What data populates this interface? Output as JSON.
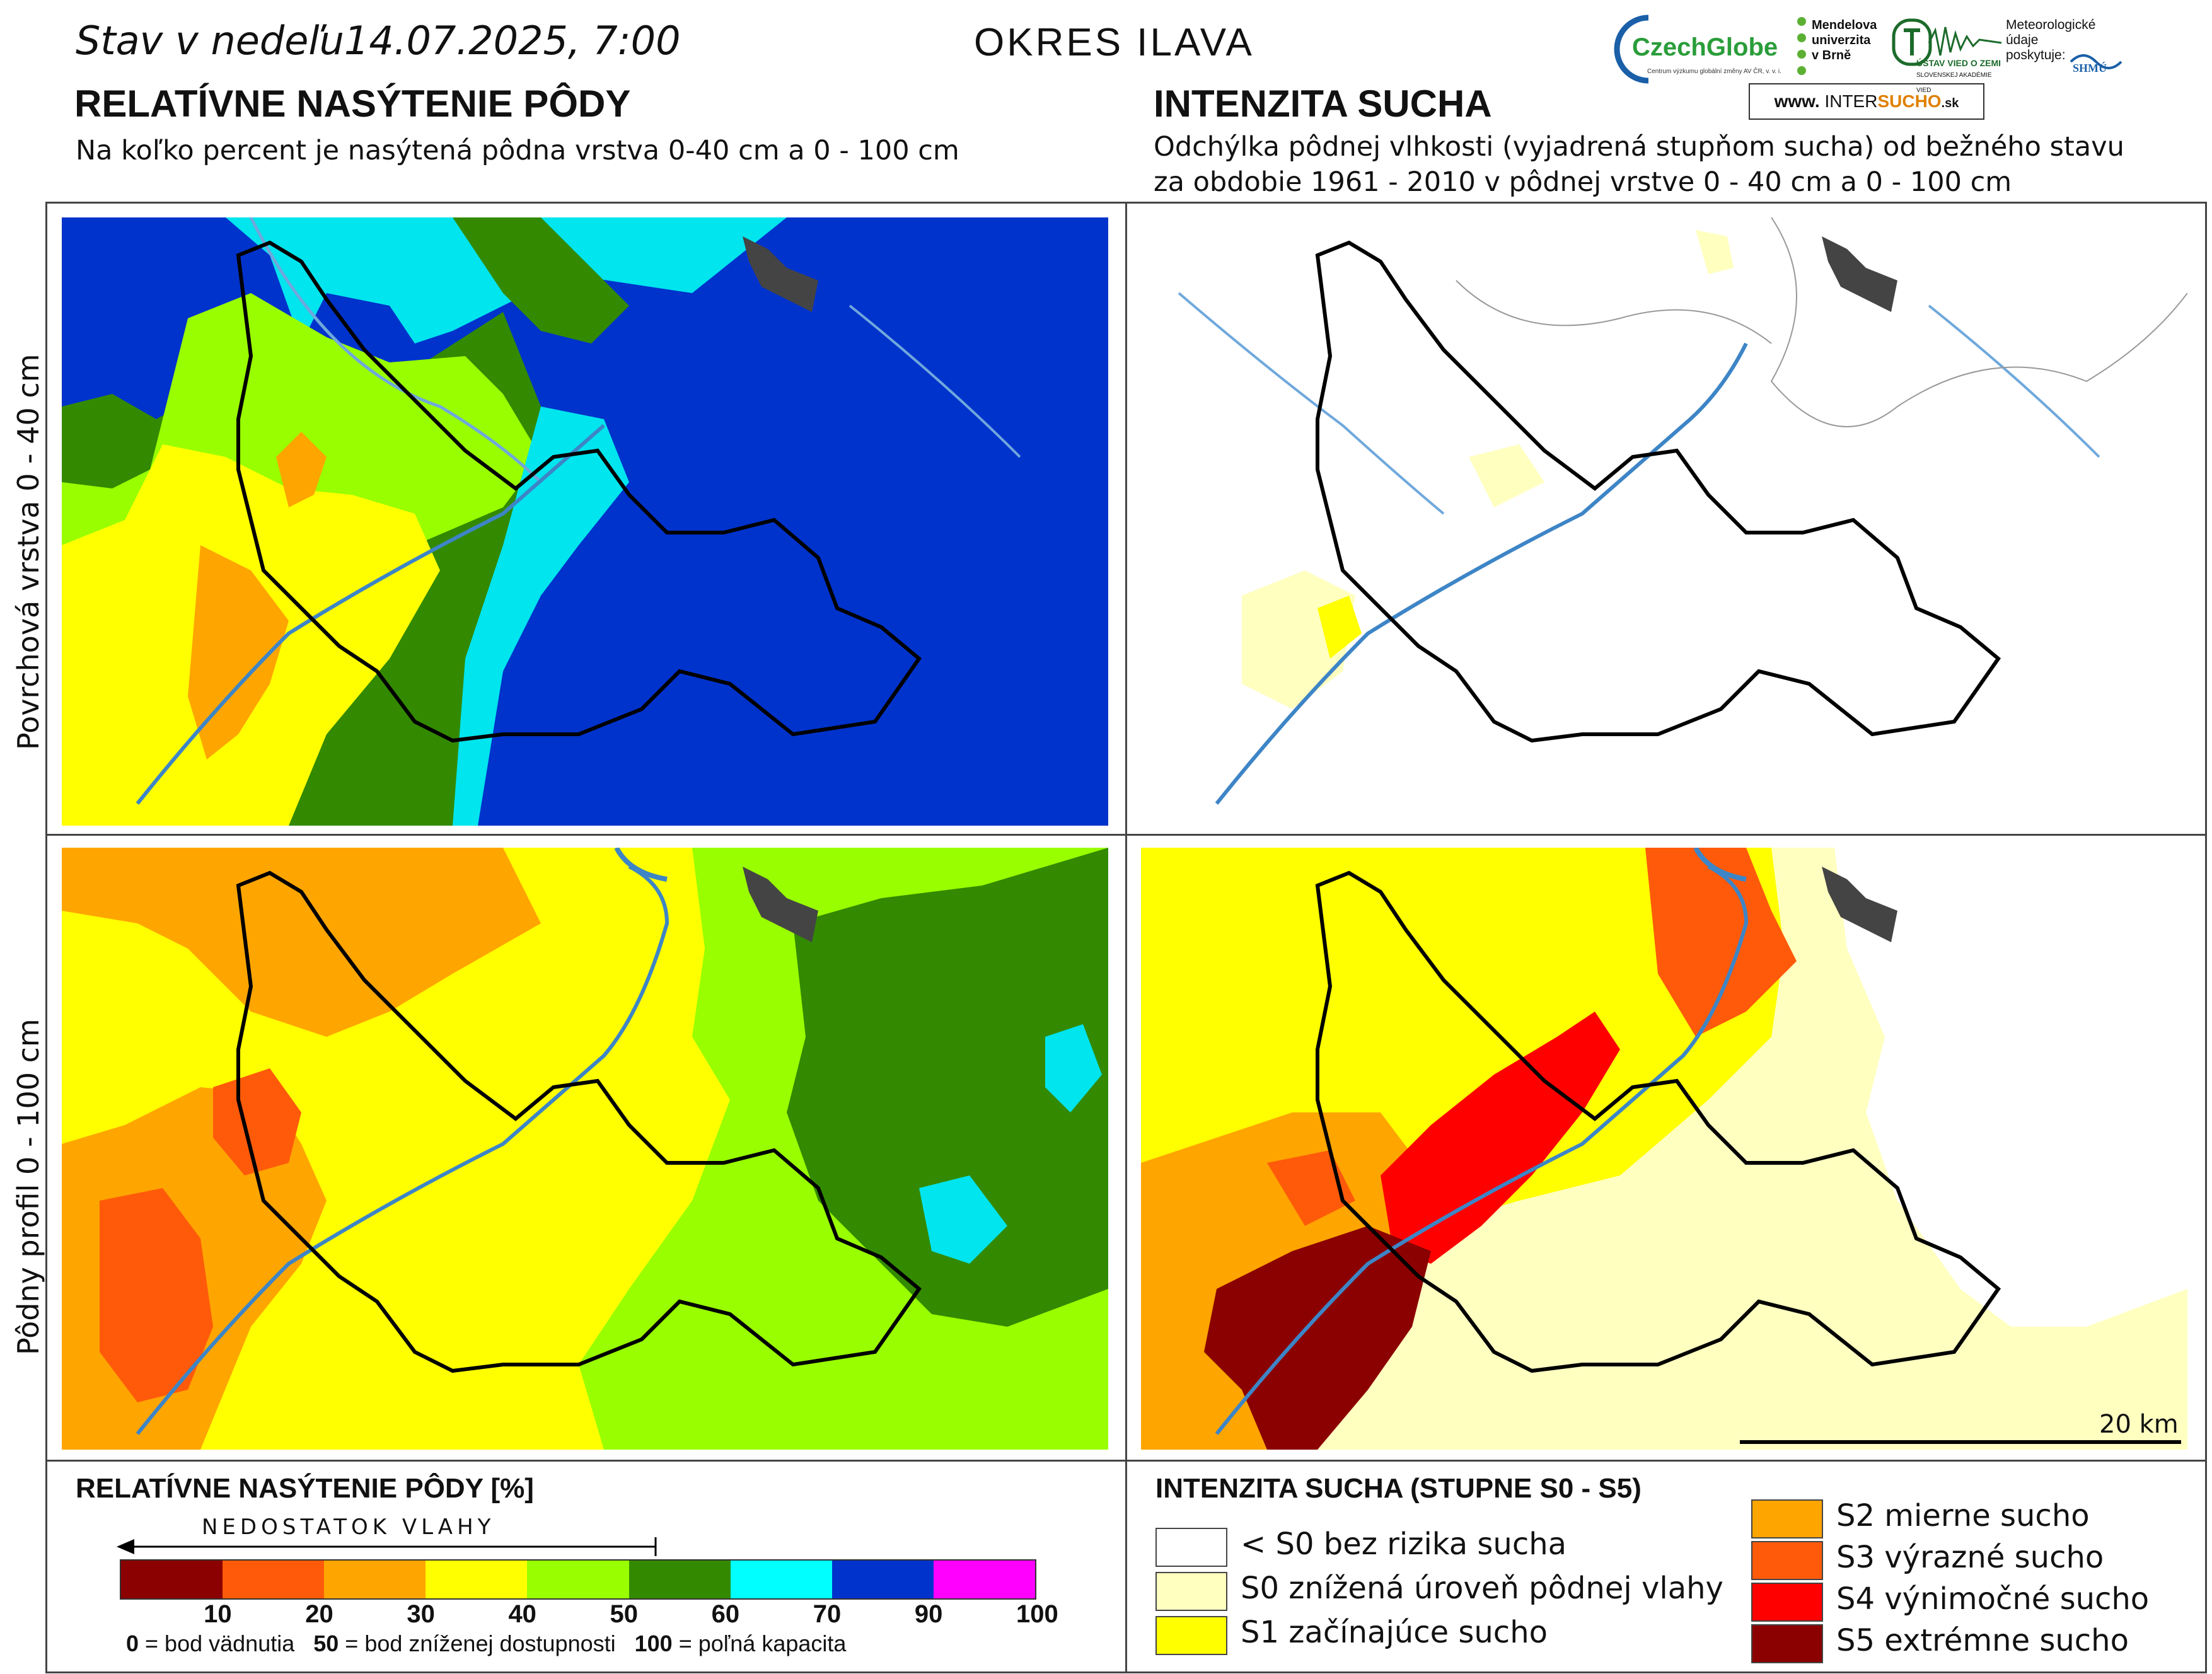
{
  "header": {
    "date_text": "Stav v nedeľu14.07.2025, 7:00",
    "district": "OKRES ILAVA",
    "left_title": "RELATÍVNE NASÝTENIE PÔDY",
    "left_subtitle": "Na koľko percent je nasýtená pôdna vrstva 0-40 cm a 0 - 100 cm",
    "right_title": "INTENZITA SUCHA",
    "right_subtitle_1": "Odchýlka pôdnej vlhkosti (vyjadrená stupňom sucha) od bežného stavu",
    "right_subtitle_2": "za obdobie 1961 - 2010 v pôdnej vrstve 0 - 40 cm a 0 - 100 cm"
  },
  "logos": {
    "czechglobe": "CzechGlobe",
    "czechglobe_sub": "Centrum výzkumu globální změny AV ČR, v. v. i.",
    "mendel": "Mendelova univerzita v Brně",
    "uvz": "ÚSTAV VIED O ZEMI",
    "uvz_sub": "SLOVENSKEJ AKADÉMIE VIED",
    "meteo": "Meteorologické údaje poskytuje:",
    "shmu": "SHMÚ",
    "web_prefix": "www.",
    "web_a": "INTER",
    "web_b": "SUCHO",
    "web_suffix": ".sk"
  },
  "row_labels": {
    "top": "Povrchová vrstva 0 - 40 cm",
    "bottom": "Pôdny profil 0 - 100 cm"
  },
  "scale_bar": "20 km",
  "saturation_legend": {
    "title": "RELATÍVNE NASÝTENIE PÔDY [%]",
    "arrow_label": "NEDOSTATOK VLAHY",
    "segments": [
      {
        "from": 0,
        "to": 10,
        "color": "#8b0000"
      },
      {
        "from": 10,
        "to": 20,
        "color": "#ff5a0a"
      },
      {
        "from": 20,
        "to": 30,
        "color": "#ffa500"
      },
      {
        "from": 30,
        "to": 40,
        "color": "#ffff00"
      },
      {
        "from": 40,
        "to": 50,
        "color": "#99ff00"
      },
      {
        "from": 50,
        "to": 60,
        "color": "#338a00"
      },
      {
        "from": 60,
        "to": 70,
        "color": "#00ffff"
      },
      {
        "from": 70,
        "to": 90,
        "color": "#0033cc"
      },
      {
        "from": 90,
        "to": 100,
        "color": "#ff00ff"
      }
    ],
    "ticks": [
      "10",
      "20",
      "30",
      "40",
      "50",
      "60",
      "70",
      "90",
      "100"
    ],
    "note_0": "0",
    "note_0_text": " = bod vädnutia",
    "note_50": "50",
    "note_50_text": " = bod zníženej dostupnosti",
    "note_100": "100",
    "note_100_text": " = poľná kapacita"
  },
  "drought_legend": {
    "title": "INTENZITA SUCHA (STUPNE S0 - S5)",
    "items": [
      {
        "label": "< S0 bez rizika sucha",
        "color": "#ffffff"
      },
      {
        "label": "S0 znížená úroveň pôdnej vlahy",
        "color": "#ffffc0"
      },
      {
        "label": "S1 začínajúce sucho",
        "color": "#ffff00"
      },
      {
        "label": "S2 mierne sucho",
        "color": "#ffa500"
      },
      {
        "label": "S3 výrazné sucho",
        "color": "#ff5a0a"
      },
      {
        "label": "S4 výnimočné sucho",
        "color": "#ff0000"
      },
      {
        "label": "S5 extrémne sucho",
        "color": "#8b0000"
      }
    ]
  }
}
